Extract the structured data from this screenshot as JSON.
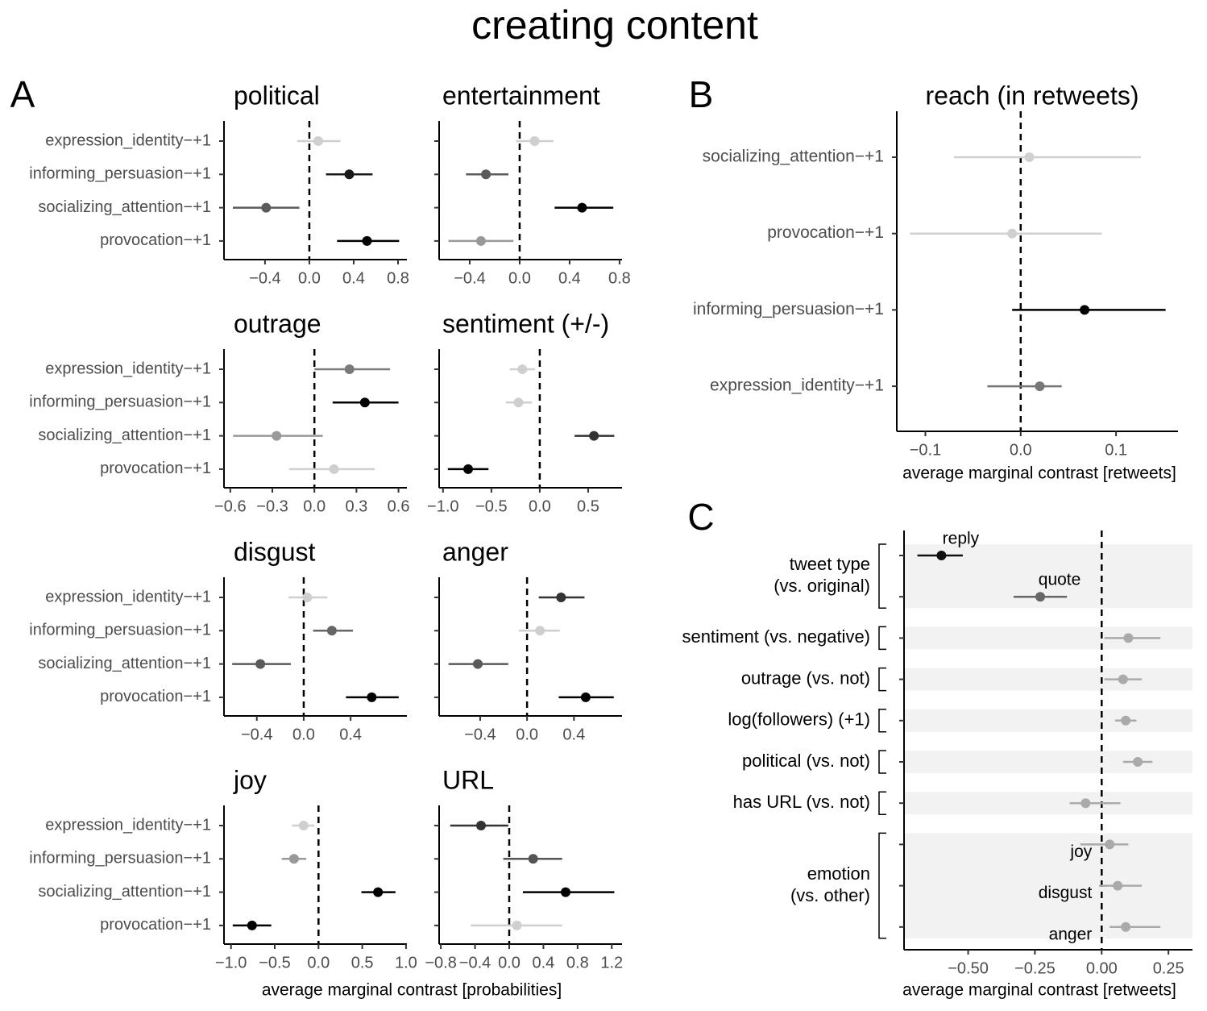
{
  "title": "creating content",
  "panels": [
    {
      "label": "A",
      "xlabel": "average marginal contrast [probabilities]"
    },
    {
      "label": "B"
    },
    {
      "label": "C"
    }
  ],
  "chart_data": [
    {
      "type": "forest",
      "title": "political",
      "categories": [
        "expression_identity−+1",
        "informing_persuasion−+1",
        "socializing_attention−+1",
        "provocation−+1"
      ],
      "values": [
        0.08,
        0.36,
        -0.39,
        0.52
      ],
      "lower": [
        -0.11,
        0.15,
        -0.69,
        0.25
      ],
      "upper": [
        0.28,
        0.57,
        -0.09,
        0.81
      ],
      "colors": [
        "#cfcfcf",
        "#1a1a1a",
        "#5a5a5a",
        "#000000"
      ],
      "xlim": [
        -0.77,
        0.88
      ],
      "xticks": [
        {
          "value": -0.4,
          "label": "−0.4"
        },
        {
          "value": 0,
          "label": "0.0"
        },
        0.4,
        0.8
      ],
      "refline": 0
    },
    {
      "type": "forest",
      "title": "entertainment",
      "values": [
        0.12,
        -0.27,
        0.5,
        -0.31
      ],
      "lower": [
        -0.03,
        -0.43,
        0.28,
        -0.57
      ],
      "upper": [
        0.27,
        -0.09,
        0.75,
        -0.05
      ],
      "colors": [
        "#cfcfcf",
        "#5a5a5a",
        "#000000",
        "#999999"
      ],
      "xlim": [
        -0.645,
        0.82
      ],
      "xticks": [
        {
          "value": -0.4,
          "label": "−0.4"
        },
        {
          "value": 0,
          "label": "0.0"
        },
        0.4,
        0.8
      ],
      "refline": 0
    },
    {
      "type": "forest",
      "title": "outrage",
      "categories": [
        "expression_identity−+1",
        "informing_persuasion−+1",
        "socializing_attention−+1",
        "provocation−+1"
      ],
      "values": [
        0.25,
        0.36,
        -0.27,
        0.14
      ],
      "lower": [
        0.0,
        0.13,
        -0.58,
        -0.18
      ],
      "upper": [
        0.54,
        0.6,
        0.06,
        0.43
      ],
      "colors": [
        "#7a7a7a",
        "#000000",
        "#999999",
        "#cfcfcf"
      ],
      "xlim": [
        -0.645,
        0.66
      ],
      "xticks": [
        {
          "value": -0.6,
          "label": "−0.6"
        },
        {
          "value": -0.3,
          "label": "−0.3"
        },
        {
          "value": 0,
          "label": "0.0"
        },
        0.3,
        0.6
      ],
      "refline": 0
    },
    {
      "type": "forest",
      "title": "sentiment (+/-)",
      "values": [
        -0.18,
        -0.22,
        0.56,
        -0.74
      ],
      "lower": [
        -0.31,
        -0.35,
        0.36,
        -0.95
      ],
      "upper": [
        -0.05,
        -0.08,
        0.77,
        -0.53
      ],
      "colors": [
        "#cfcfcf",
        "#cfcfcf",
        "#333333",
        "#000000"
      ],
      "xlim": [
        -1.04,
        0.85
      ],
      "xticks": [
        {
          "value": -1,
          "label": "−1.0"
        },
        {
          "value": -0.5,
          "label": "−0.5"
        },
        {
          "value": 0,
          "label": "0.0"
        },
        0.5
      ],
      "refline": 0
    },
    {
      "type": "forest",
      "title": "disgust",
      "categories": [
        "expression_identity−+1",
        "informing_persuasion−+1",
        "socializing_attention−+1",
        "provocation−+1"
      ],
      "values": [
        0.03,
        0.24,
        -0.37,
        0.58
      ],
      "lower": [
        -0.13,
        0.08,
        -0.61,
        0.36
      ],
      "upper": [
        0.2,
        0.42,
        -0.11,
        0.81
      ],
      "colors": [
        "#cfcfcf",
        "#666666",
        "#5a5a5a",
        "#000000"
      ],
      "xlim": [
        -0.68,
        0.88
      ],
      "xticks": [
        {
          "value": -0.4,
          "label": "−0.4"
        },
        {
          "value": 0,
          "label": "0.0"
        },
        0.4
      ],
      "refline": 0
    },
    {
      "type": "forest",
      "title": "anger",
      "values": [
        0.29,
        0.11,
        -0.42,
        0.5
      ],
      "lower": [
        0.1,
        -0.07,
        -0.67,
        0.27
      ],
      "upper": [
        0.49,
        0.28,
        -0.16,
        0.74
      ],
      "colors": [
        "#333333",
        "#cfcfcf",
        "#5a5a5a",
        "#000000"
      ],
      "xlim": [
        -0.75,
        0.81
      ],
      "xticks": [
        {
          "value": -0.4,
          "label": "−0.4"
        },
        {
          "value": 0,
          "label": "0.0"
        },
        0.4
      ],
      "refline": 0
    },
    {
      "type": "forest",
      "title": "joy",
      "categories": [
        "expression_identity−+1",
        "informing_persuasion−+1",
        "socializing_attention−+1",
        "provocation−+1"
      ],
      "values": [
        -0.17,
        -0.28,
        0.68,
        -0.76
      ],
      "lower": [
        -0.3,
        -0.42,
        0.49,
        -0.98
      ],
      "upper": [
        -0.05,
        -0.14,
        0.88,
        -0.54
      ],
      "colors": [
        "#cfcfcf",
        "#999999",
        "#000000",
        "#000000"
      ],
      "xlim": [
        -1.08,
        1.01
      ],
      "xticks": [
        {
          "value": -1,
          "label": "−1.0"
        },
        {
          "value": -0.5,
          "label": "−0.5"
        },
        {
          "value": 0,
          "label": "0.0"
        },
        0.5,
        {
          "value": 1,
          "label": "1.0"
        }
      ],
      "refline": 0
    },
    {
      "type": "forest",
      "title": "URL",
      "values": [
        -0.33,
        0.28,
        0.66,
        0.09
      ],
      "lower": [
        -0.69,
        -0.07,
        0.16,
        -0.45
      ],
      "upper": [
        -0.01,
        0.62,
        1.23,
        0.62
      ],
      "colors": [
        "#333333",
        "#555555",
        "#000000",
        "#cfcfcf"
      ],
      "xlim": [
        -0.82,
        1.32
      ],
      "xticks": [
        {
          "value": -0.8,
          "label": "−0.8"
        },
        {
          "value": -0.4,
          "label": "−0.4"
        },
        {
          "value": 0,
          "label": "0.0"
        },
        0.4,
        0.8,
        1.2
      ],
      "refline": 0
    },
    {
      "type": "forest",
      "title": "reach (in retweets)",
      "xlabel": "average marginal contrast [retweets]",
      "categories": [
        "socializing_attention−+1",
        "provocation−+1",
        "informing_persuasion−+1",
        "expression_identity−+1"
      ],
      "values": [
        0.009,
        -0.009,
        0.067,
        0.02
      ],
      "lower": [
        -0.07,
        -0.116,
        -0.009,
        -0.035
      ],
      "upper": [
        0.126,
        0.085,
        0.152,
        0.043
      ],
      "colors": [
        "#d0d0d0",
        "#d0d0d0",
        "#000000",
        "#777777"
      ],
      "xlim": [
        -0.13,
        0.165
      ],
      "xticks": [
        {
          "value": -0.1,
          "label": "−0.1"
        },
        {
          "value": 0,
          "label": "0.0"
        },
        0.1
      ],
      "refline": 0
    },
    {
      "type": "grouped_forest",
      "xlabel": "average marginal contrast [retweets]",
      "xlim": [
        -0.74,
        0.34
      ],
      "xticks": [
        {
          "value": -0.5,
          "label": "−0.50"
        },
        {
          "value": -0.25,
          "label": "−0.25"
        },
        {
          "value": 0,
          "label": "0.00"
        },
        {
          "value": 0.25,
          "label": "0.25"
        }
      ],
      "refline": 0,
      "groups": [
        {
          "label": [
            "tweet type",
            "(vs. original)"
          ],
          "categories": [
            "reply",
            "quote"
          ],
          "values": [
            -0.6,
            -0.23
          ],
          "lower": [
            -0.69,
            -0.33
          ],
          "upper": [
            -0.52,
            -0.13
          ],
          "colors": [
            "#111111",
            "#666666"
          ]
        },
        {
          "label": [
            "sentiment (vs. negative)"
          ],
          "categories": [
            null
          ],
          "values": [
            0.1
          ],
          "lower": [
            0.01
          ],
          "upper": [
            0.22
          ],
          "colors": [
            "#aaaaaa"
          ]
        },
        {
          "label": [
            "outrage (vs. not)"
          ],
          "categories": [
            null
          ],
          "values": [
            0.08
          ],
          "lower": [
            0.01
          ],
          "upper": [
            0.15
          ],
          "colors": [
            "#aaaaaa"
          ]
        },
        {
          "label": [
            "log(followers) (+1)"
          ],
          "categories": [
            null
          ],
          "values": [
            0.09
          ],
          "lower": [
            0.05
          ],
          "upper": [
            0.13
          ],
          "colors": [
            "#aaaaaa"
          ]
        },
        {
          "label": [
            "political (vs. not)"
          ],
          "categories": [
            null
          ],
          "values": [
            0.135
          ],
          "lower": [
            0.08
          ],
          "upper": [
            0.19
          ],
          "colors": [
            "#aaaaaa"
          ]
        },
        {
          "label": [
            "has URL (vs. not)"
          ],
          "categories": [
            null
          ],
          "values": [
            -0.06
          ],
          "lower": [
            -0.12
          ],
          "upper": [
            0.07
          ],
          "colors": [
            "#aaaaaa"
          ]
        },
        {
          "label": [
            "emotion",
            "(vs. other)"
          ],
          "categories": [
            "joy",
            "disgust",
            "anger"
          ],
          "values": [
            0.03,
            0.06,
            0.09
          ],
          "lower": [
            -0.08,
            -0.01,
            0.03
          ],
          "upper": [
            0.1,
            0.15,
            0.22
          ],
          "colors": [
            "#aaaaaa",
            "#aaaaaa",
            "#aaaaaa"
          ]
        }
      ]
    }
  ]
}
